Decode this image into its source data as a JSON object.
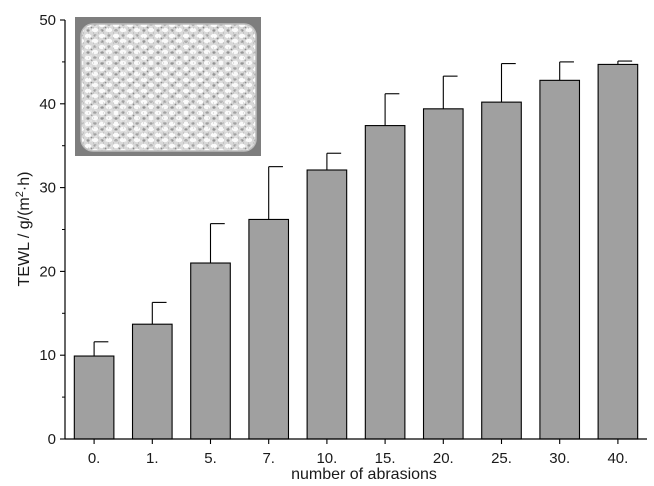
{
  "chart_data": {
    "type": "bar",
    "title": "",
    "xlabel": "number of abrasions",
    "ylabel": "TEWL / g/(m",
    "ylabel_superscript": "2",
    "ylabel_suffix": "·h)",
    "categories": [
      "0.",
      "1.",
      "5.",
      "7.",
      "10.",
      "15.",
      "20.",
      "25.",
      "30.",
      "40."
    ],
    "values": [
      9.9,
      13.7,
      21.0,
      26.2,
      32.1,
      37.4,
      39.4,
      40.2,
      42.8,
      44.7
    ],
    "error_upper": [
      11.6,
      16.3,
      25.7,
      32.5,
      34.1,
      41.2,
      43.3,
      44.8,
      45.0,
      45.1
    ],
    "ylim": [
      0,
      50
    ],
    "yticks": [
      "0",
      "10",
      "20",
      "30",
      "40",
      "50"
    ],
    "grid": false,
    "legend": "none",
    "bar_color": "#a0a0a0",
    "inset_image": "abrasive-sponge-photo"
  }
}
